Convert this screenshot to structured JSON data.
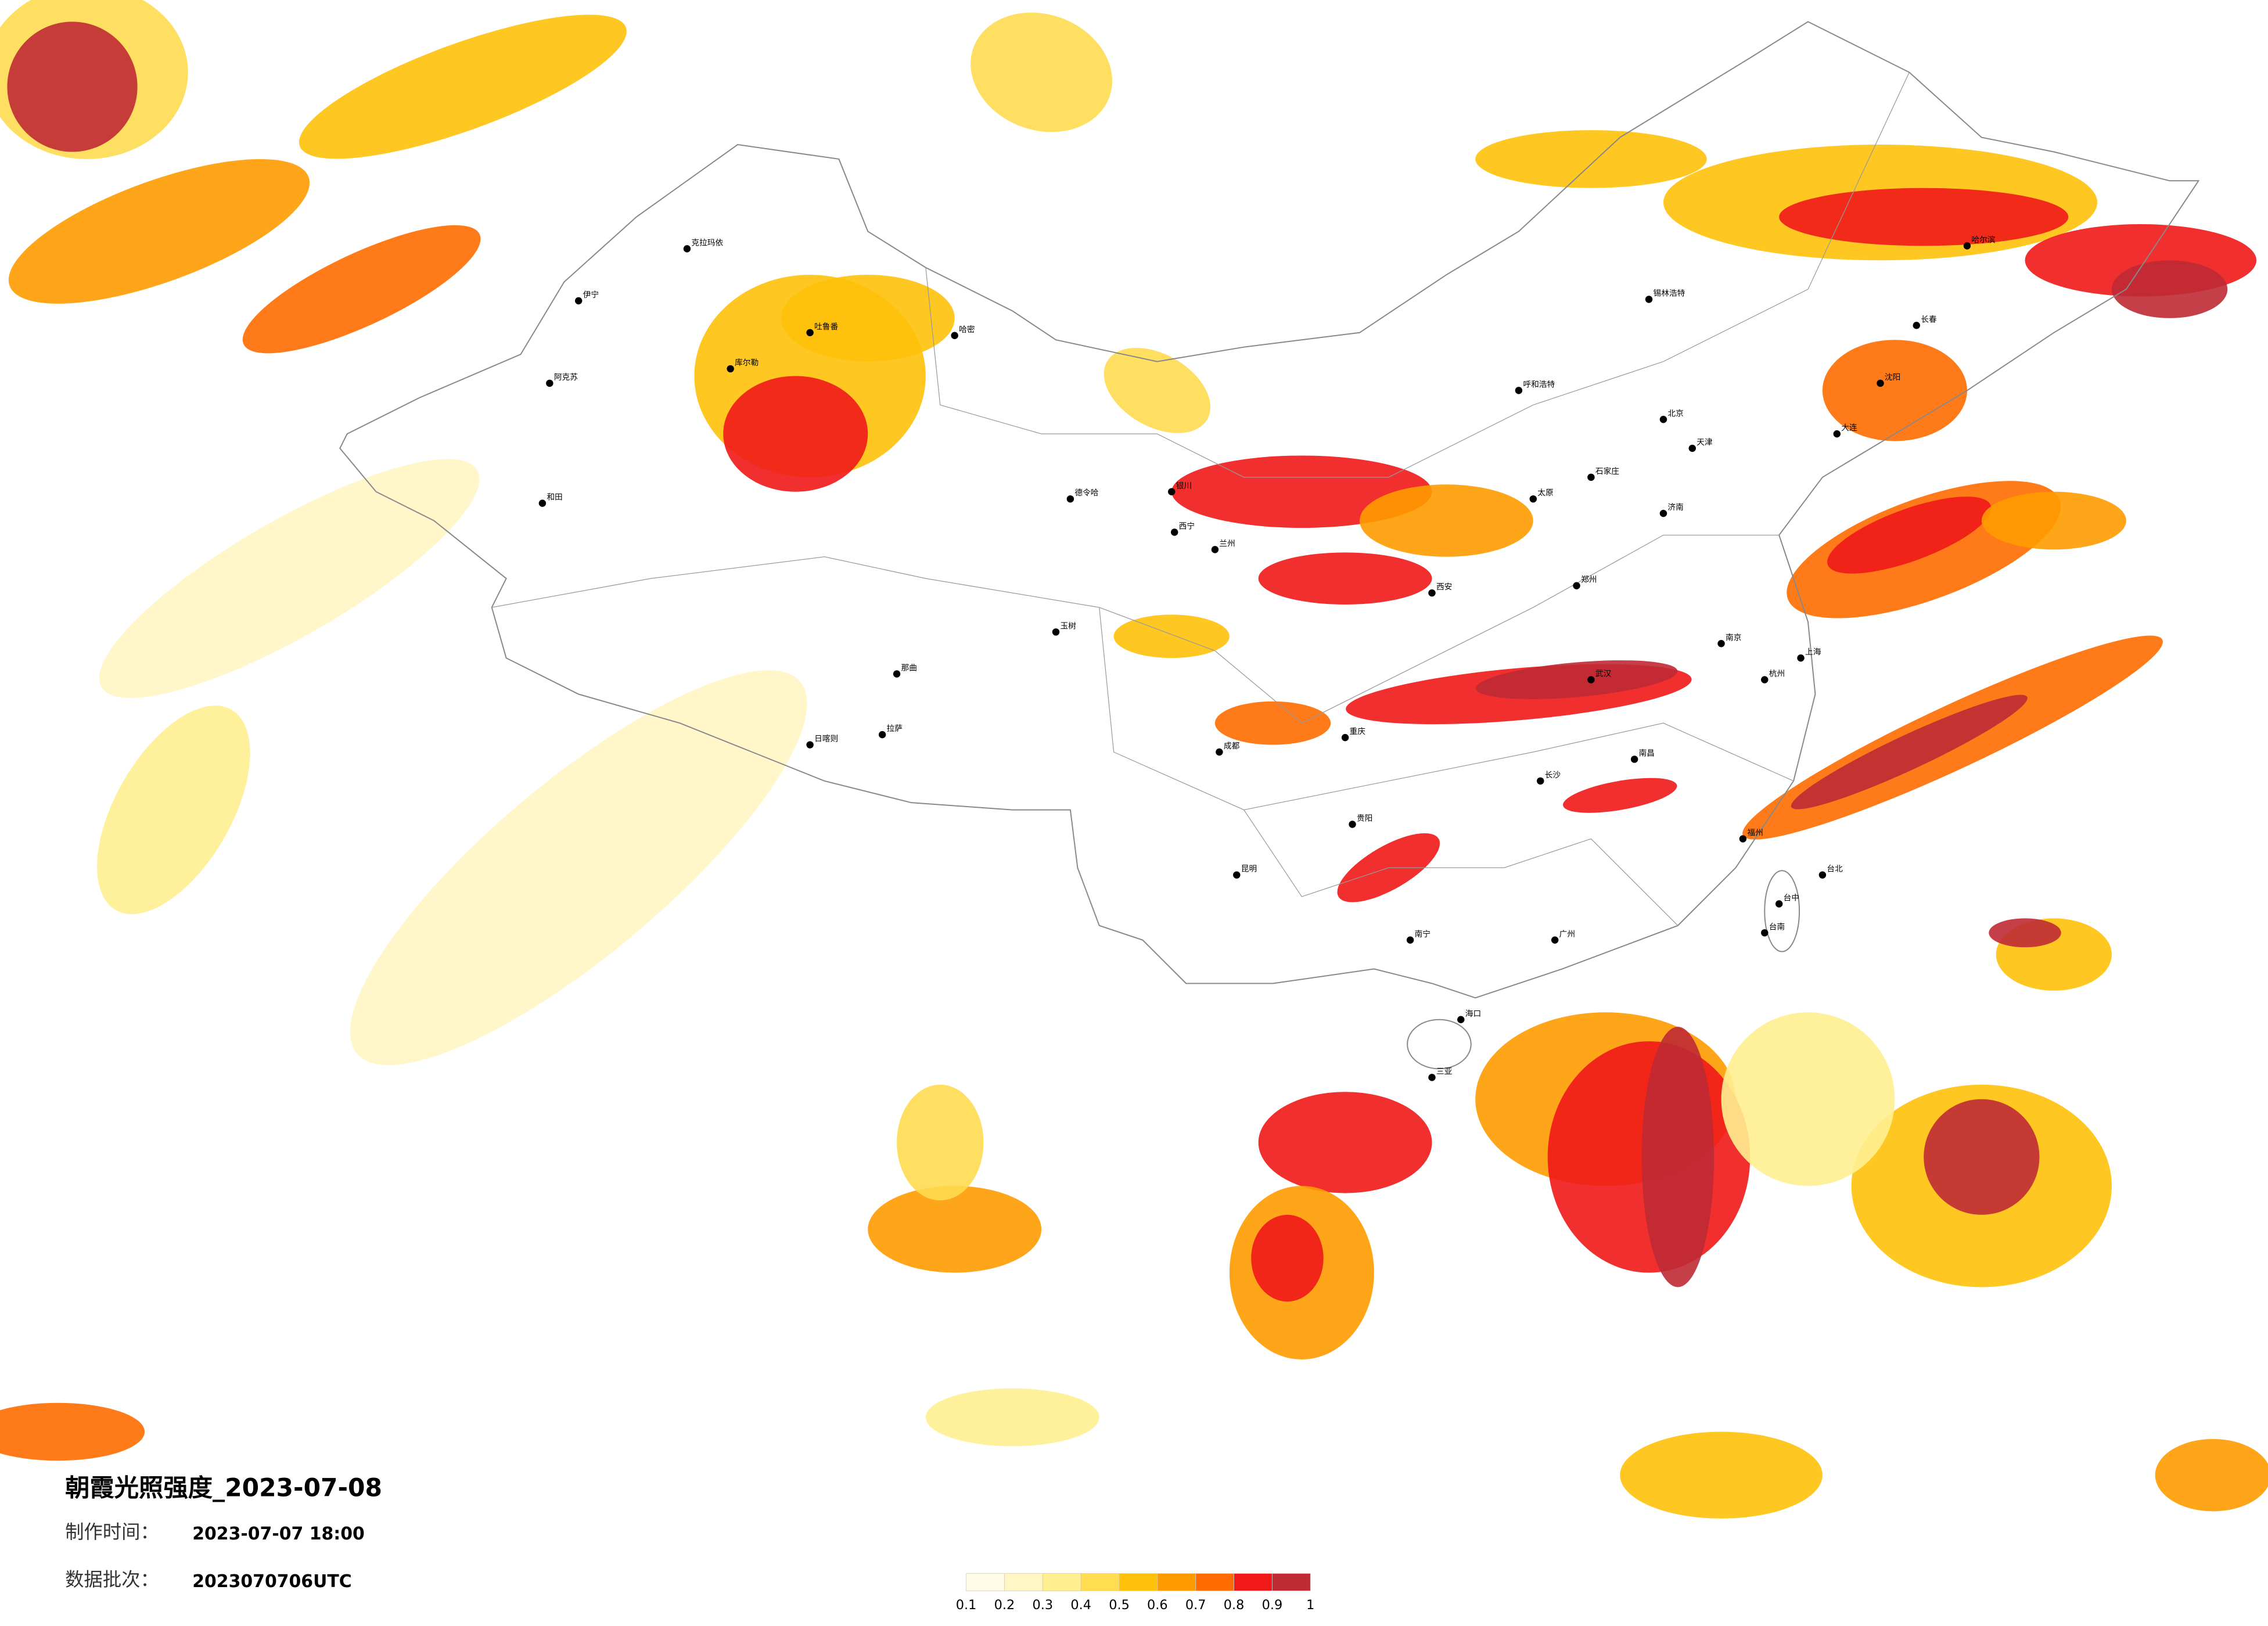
{
  "title": "朝霞光照强度_2023-07-08",
  "production_time": {
    "label": "制作时间：",
    "value": "2023-07-07 18:00"
  },
  "batch": {
    "label": "数据批次：",
    "value": "2023070706UTC"
  },
  "legend": {
    "colors": [
      "#fffbe6",
      "#fff6c4",
      "#ffef91",
      "#ffdc50",
      "#ffc10a",
      "#ff9b00",
      "#ff6b00",
      "#f01818",
      "#bf2a34"
    ],
    "ticks": [
      0.1,
      0.2,
      0.3,
      0.4,
      0.5,
      0.6,
      0.7,
      0.8,
      0.9,
      1
    ]
  },
  "cities": [
    "克拉玛依",
    "伊宁",
    "阿克苏",
    "和田",
    "库尔勒",
    "吐鲁番",
    "哈密",
    "德令哈",
    "玉树",
    "日喀则",
    "拉萨",
    "那曲",
    "银川",
    "兰州",
    "西宁",
    "成都",
    "重庆",
    "昆明",
    "南宁",
    "海口",
    "三亚",
    "北京",
    "天津",
    "石家庄",
    "太原",
    "济南",
    "郑州",
    "武汉",
    "长沙",
    "南昌",
    "杭州",
    "南京",
    "上海",
    "福州",
    "台北",
    "台中",
    "台南",
    "广州",
    "贵阳",
    "呼和浩特",
    "哈尔滨",
    "长春",
    "沈阳",
    "大连",
    "锡林浩特",
    "西安"
  ]
}
